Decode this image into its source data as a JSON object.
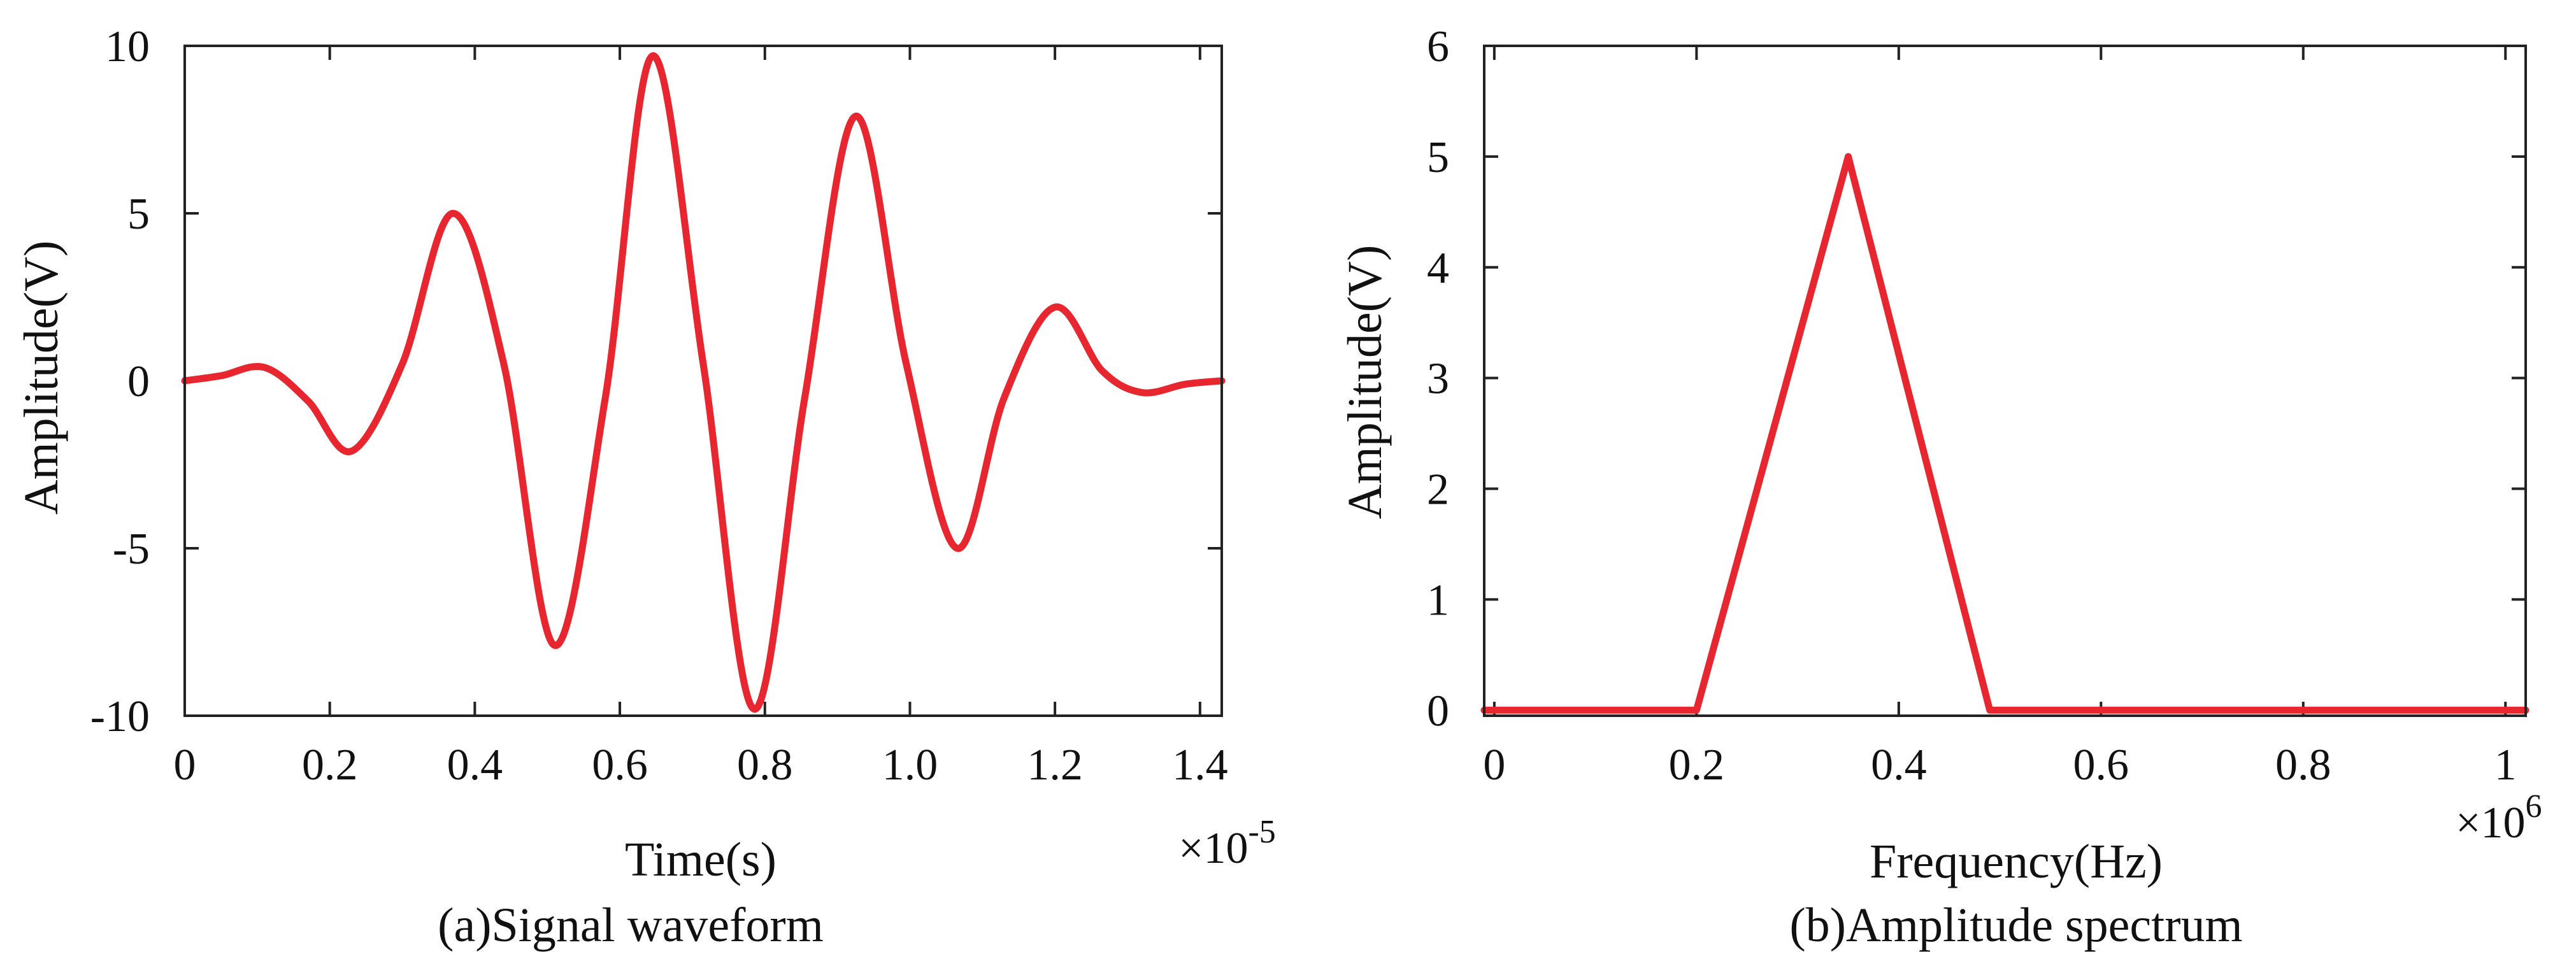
{
  "chart_data": [
    {
      "type": "line",
      "title": "(a)Signal waveform",
      "xlabel": "Time(s)",
      "ylabel": "Amplitude(V)",
      "x_multiplier": "×10",
      "x_exponent": "-5",
      "xlim": [
        0,
        1.43
      ],
      "ylim": [
        -10,
        10
      ],
      "xticks": [
        0,
        0.2,
        0.4,
        0.6,
        0.8,
        1.0,
        1.2,
        1.4
      ],
      "xtick_labels": [
        "0",
        "0.2",
        "0.4",
        "0.6",
        "0.8",
        "1.0",
        "1.2",
        "1.4"
      ],
      "yticks": [
        -10,
        -5,
        0,
        5,
        10
      ],
      "ytick_labels": [
        "-10",
        "-5",
        "0",
        "5",
        "10"
      ],
      "grid": false,
      "series": [
        {
          "name": "signal",
          "color": "#e8262f",
          "x": [
            0,
            0.05,
            0.11,
            0.17,
            0.23,
            0.3,
            0.37,
            0.44,
            0.51,
            0.58,
            0.645,
            0.715,
            0.785,
            0.855,
            0.925,
            0.995,
            1.065,
            1.13,
            1.2,
            1.265,
            1.32,
            1.38,
            1.43
          ],
          "y": [
            0,
            0.15,
            0.4,
            -0.6,
            -2.1,
            0.5,
            5.0,
            0.5,
            -7.9,
            -0.5,
            9.7,
            0.5,
            -9.8,
            -0.5,
            7.9,
            0.5,
            -5.0,
            -0.5,
            2.2,
            0.3,
            -0.35,
            -0.1,
            0
          ]
        }
      ]
    },
    {
      "type": "line",
      "title": "(b)Amplitude spectrum",
      "xlabel": "Frequency(Hz)",
      "ylabel": "Amplitude(V)",
      "x_multiplier": "×10",
      "x_exponent": "6",
      "xlim": [
        -0.01,
        1.02
      ],
      "ylim": [
        -0.05,
        6
      ],
      "xticks": [
        0,
        0.2,
        0.4,
        0.6,
        0.8,
        1
      ],
      "xtick_labels": [
        "0",
        "0.2",
        "0.4",
        "0.6",
        "0.8",
        "1"
      ],
      "yticks": [
        0,
        1,
        2,
        3,
        4,
        5,
        6
      ],
      "ytick_labels": [
        "0",
        "1",
        "2",
        "3",
        "4",
        "5",
        "6"
      ],
      "grid": false,
      "series": [
        {
          "name": "spectrum",
          "color": "#e8262f",
          "x": [
            -0.01,
            0.2,
            0.35,
            0.49,
            1.02
          ],
          "y": [
            0,
            0,
            5,
            0,
            0
          ]
        }
      ]
    }
  ]
}
